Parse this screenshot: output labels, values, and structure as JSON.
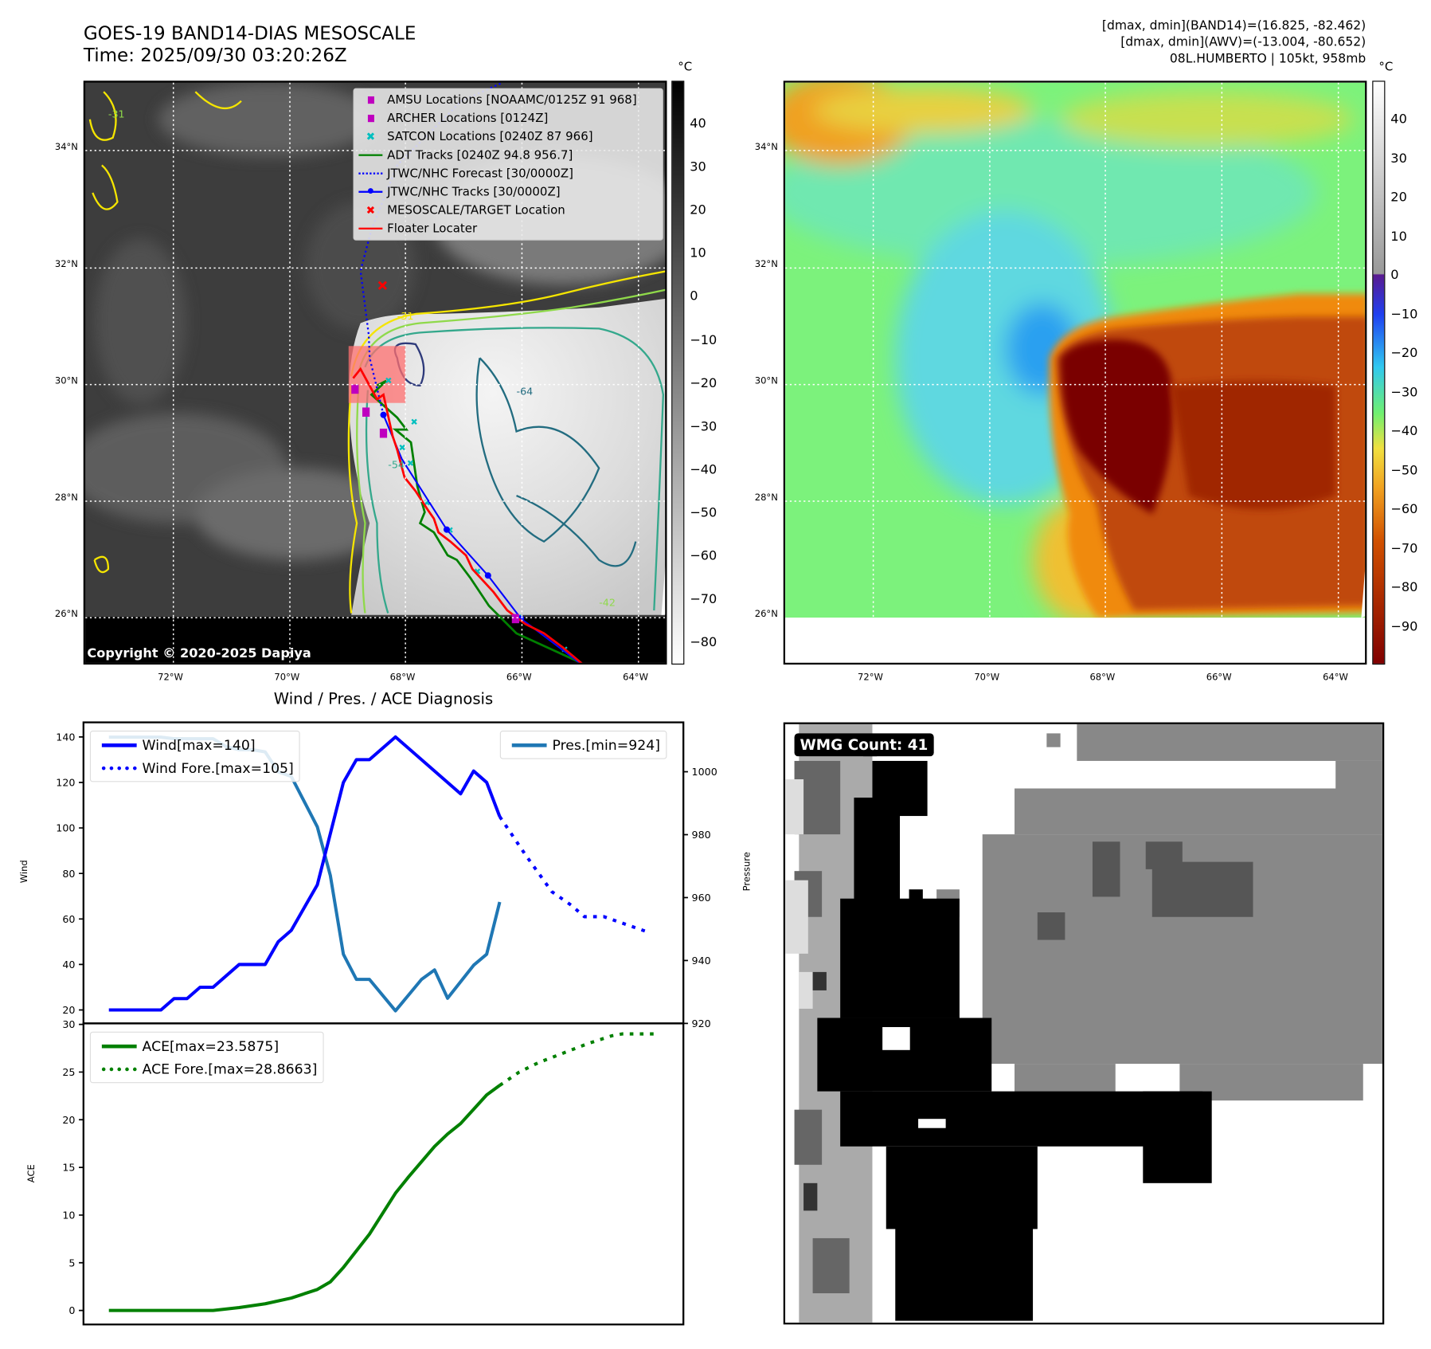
{
  "header": {
    "title": "GOES-19 BAND14-DIAS MESOSCALE",
    "time": "Time: 2025/09/30 03:20:26Z",
    "info_line1": "[dmax, dmin](BAND14)=(16.825, -82.462)",
    "info_line2": "[dmax, dmin](AWV)=(-13.004, -80.652)",
    "info_line3": "08L.HUMBERTO | 105kt, 958mb"
  },
  "map_left": {
    "unit": "°C",
    "lat_labels": [
      "34°N",
      "32°N",
      "30°N",
      "28°N",
      "26°N"
    ],
    "lon_labels": [
      "72°W",
      "70°W",
      "68°W",
      "66°W",
      "64°W"
    ],
    "colorbar_ticks": [
      "40",
      "30",
      "20",
      "10",
      "0",
      "−10",
      "−20",
      "−30",
      "−40",
      "−50",
      "−60",
      "−70",
      "−80"
    ],
    "copyright": "Copyright © 2020-2025 Dapiya",
    "contour_labels": [
      "-31",
      "-31",
      "-54",
      "-64",
      "-42"
    ],
    "legend": [
      {
        "label": "AMSU Locations [NOAAMC/0125Z 91 968]",
        "icon": "square-marker",
        "color": "#bf00bf"
      },
      {
        "label": "ARCHER Locations [0124Z]",
        "icon": "square-marker",
        "color": "#bf00bf"
      },
      {
        "label": "SATCON Locations [0240Z 87 966]",
        "icon": "x-marker",
        "color": "#00bfbf"
      },
      {
        "label": "ADT Tracks [0240Z 94.8 956.7]",
        "icon": "line",
        "color": "#008000"
      },
      {
        "label": "JTWC/NHC Forecast [30/0000Z]",
        "icon": "dotted-line",
        "color": "#0000ff"
      },
      {
        "label": "JTWC/NHC Tracks [30/0000Z]",
        "icon": "line-dot",
        "color": "#0000ff"
      },
      {
        "label": "MESOSCALE/TARGET Location",
        "icon": "x-marker",
        "color": "#ff0000"
      },
      {
        "label": "Floater Locater",
        "icon": "line",
        "color": "#ff0000"
      }
    ]
  },
  "map_right": {
    "unit": "°C",
    "lat_labels": [
      "34°N",
      "32°N",
      "30°N",
      "28°N",
      "26°N"
    ],
    "lon_labels": [
      "72°W",
      "70°W",
      "68°W",
      "66°W",
      "64°W"
    ],
    "colorbar_ticks": [
      "40",
      "30",
      "20",
      "10",
      "0",
      "−10",
      "−20",
      "−30",
      "−40",
      "−50",
      "−60",
      "−70",
      "−80",
      "−90"
    ]
  },
  "wmg": {
    "label": "WMG Count: 41"
  },
  "chart_data": [
    {
      "type": "line",
      "title": "Wind / Pres. / ACE Diagnosis",
      "ylabel": "Wind",
      "ylabel_right": "Pressure",
      "xlim": [
        -1.95,
        44.1
      ],
      "ylim": [
        14.1,
        146.4
      ],
      "ylim_right": [
        920,
        1015.7
      ],
      "yticks": [
        20,
        40,
        60,
        80,
        100,
        120,
        140
      ],
      "yticks_right": [
        920,
        940,
        960,
        980,
        1000
      ],
      "legend_left": [
        "Wind[max=140]",
        "Wind Fore.[max=105]"
      ],
      "legend_right": [
        "Pres.[min=924]"
      ],
      "series": [
        {
          "name": "Wind[max=140]",
          "color": "#0000ff",
          "style": "solid",
          "axis": "left",
          "x": [
            0,
            4,
            5,
            6,
            7,
            8,
            10,
            12,
            13,
            14,
            16,
            18,
            19,
            20,
            22,
            27,
            28,
            29,
            30
          ],
          "y": [
            20,
            20,
            25,
            25,
            30,
            30,
            40,
            40,
            50,
            55,
            75,
            120,
            130,
            130,
            140,
            115,
            125,
            120,
            105
          ]
        },
        {
          "name": "Wind Fore.[max=105]",
          "color": "#0000ff",
          "style": "dotted",
          "axis": "left",
          "x": [
            30,
            32,
            34,
            35.5,
            36.5,
            38,
            39,
            41.5
          ],
          "y": [
            105,
            88,
            72,
            66,
            61,
            61,
            59,
            54
          ]
        },
        {
          "name": "Pres.[min=924]",
          "color": "#1f77b4",
          "style": "solid",
          "axis": "right",
          "x": [
            0,
            4,
            5,
            8,
            9,
            10,
            11,
            12,
            13,
            14,
            16,
            17,
            18,
            19,
            20,
            22,
            24,
            25,
            26,
            28,
            29,
            30
          ],
          "y": [
            1011,
            1011,
            1010.5,
            1010.5,
            1008,
            1007,
            1007,
            1006.3,
            1000,
            998.5,
            982.5,
            967,
            942,
            934,
            934,
            924,
            934,
            937,
            928,
            938.5,
            942,
            958.6
          ]
        }
      ]
    },
    {
      "type": "line",
      "ylabel": "ACE",
      "xlim": [
        -1.95,
        44.1
      ],
      "ylim": [
        -1.47,
        30.1
      ],
      "yticks": [
        0,
        5,
        10,
        15,
        20,
        25,
        30
      ],
      "legend": [
        "ACE[max=23.5875]",
        "ACE Fore.[max=28.8663]"
      ],
      "series": [
        {
          "name": "ACE[max=23.5875]",
          "color": "#008000",
          "style": "solid",
          "x": [
            0,
            8,
            10,
            12,
            14,
            16,
            17,
            18,
            20,
            22,
            23,
            24,
            25,
            26,
            27,
            28,
            29,
            30
          ],
          "y": [
            0,
            0,
            0.3,
            0.7,
            1.3,
            2.2,
            3.0,
            4.5,
            8.0,
            12.3,
            14.0,
            15.6,
            17.2,
            18.5,
            19.6,
            21.1,
            22.6,
            23.6
          ]
        },
        {
          "name": "ACE Fore.[max=28.8663]",
          "color": "#008000",
          "style": "dotted",
          "x": [
            30,
            31.5,
            33,
            34.9,
            36.8,
            38.6,
            39.4,
            42
          ],
          "y": [
            23.6,
            25,
            26,
            27,
            28,
            28.8,
            29,
            29
          ]
        }
      ]
    }
  ]
}
